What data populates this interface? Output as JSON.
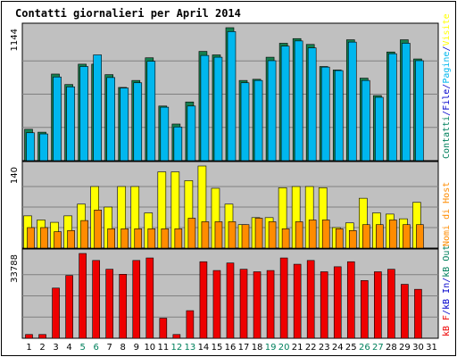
{
  "chart_data": {
    "type": "bar",
    "title": "Contatti giornalieri per April 2014",
    "categories": [
      "1",
      "2",
      "3",
      "4",
      "5",
      "6",
      "7",
      "8",
      "9",
      "10",
      "11",
      "12",
      "13",
      "14",
      "15",
      "16",
      "17",
      "18",
      "19",
      "20",
      "21",
      "22",
      "23",
      "24",
      "25",
      "26",
      "27",
      "28",
      "29",
      "30",
      "31"
    ],
    "weekend_days": [
      "5",
      "6",
      "12",
      "13",
      "19",
      "20",
      "26",
      "27"
    ],
    "colors": {
      "title": "#0000cc",
      "pagine": "#00b7ee",
      "file": "#157e4f",
      "hits": "#ffff00",
      "hosts": "#ff8c00",
      "kb": "#ee0000",
      "plot_bg": "#c0c0c0",
      "weekend_label": "#00805c",
      "legend_contatti": "#00805c",
      "legend_file": "#0000cc",
      "legend_kb": "#0000cc",
      "legend_hosts": "#ff8c00",
      "legend_visite": "#ffff00"
    },
    "panels": [
      {
        "name": "visits",
        "ymax_label": "1144",
        "ylim": [
          0,
          1144
        ],
        "legend": [
          {
            "text": "Contatti",
            "color_key": "legend_contatti"
          },
          {
            "text": "/",
            "color_key": "legend_file"
          },
          {
            "text": "File",
            "color_key": "legend_file"
          },
          {
            "text": "/",
            "color_key": "legend_file"
          },
          {
            "text": "Pagine",
            "color_key": "pagine"
          },
          {
            "text": "/",
            "color_key": "legend_file"
          },
          {
            "text": "Visite",
            "color_key": "legend_visite"
          }
        ],
        "series": [
          {
            "name": "Contatti",
            "values": [
              270,
              245,
              745,
              655,
              830,
              830,
              740,
              630,
              690,
              885,
              470,
              315,
              505,
              940,
              910,
              1144,
              690,
              700,
              890,
              1010,
              1050,
              1000,
              810,
              780,
              1040,
              710,
              560,
              935,
              1040,
              875,
              0
            ]
          },
          {
            "name": "Pagine",
            "values": [
              240,
              230,
              720,
              635,
              810,
              910,
              715,
              625,
              670,
              855,
              460,
              290,
              470,
              905,
              890,
              1110,
              670,
              690,
              860,
              985,
              1030,
              970,
              805,
              775,
              1020,
              690,
              545,
              920,
              1010,
              860,
              0
            ]
          }
        ]
      },
      {
        "name": "hosts",
        "ymax_label": "140",
        "ylim": [
          0,
          140
        ],
        "legend": [
          {
            "text": "Nomi di Host",
            "color_key": "legend_hosts"
          }
        ],
        "series": [
          {
            "name": "Visite",
            "values": [
              55,
              48,
              44,
              55,
              75,
              105,
              70,
              105,
              105,
              60,
              130,
              130,
              115,
              140,
              102,
              75,
              40,
              52,
              52,
              103,
              105,
              105,
              103,
              35,
              43,
              85,
              60,
              58,
              50,
              78,
              0
            ]
          },
          {
            "name": "Nomi di Host",
            "values": [
              35,
              35,
              28,
              30,
              47,
              65,
              33,
              33,
              33,
              33,
              33,
              33,
              51,
              45,
              45,
              45,
              40,
              51,
              45,
              33,
              45,
              48,
              48,
              33,
              30,
              40,
              40,
              48,
              40,
              40,
              0
            ]
          }
        ]
      },
      {
        "name": "kb",
        "ymax_label": "33788",
        "ylim": [
          0,
          33788
        ],
        "legend": [
          {
            "text": "kB F",
            "color_key": "kb"
          },
          {
            "text": "/",
            "color_key": "legend_kb"
          },
          {
            "text": "kB In",
            "color_key": "legend_kb"
          },
          {
            "text": "/",
            "color_key": "legend_kb"
          },
          {
            "text": "kB Out",
            "color_key": "legend_contatti"
          }
        ],
        "series": [
          {
            "name": "kB F",
            "values": [
              1500,
              1500,
              20000,
              25000,
              33788,
              31000,
              27500,
              25500,
              31000,
              32000,
              8000,
              1500,
              11000,
              30500,
              27000,
              30000,
              27500,
              26500,
              27000,
              32000,
              29500,
              31000,
              26500,
              28500,
              30500,
              23000,
              26500,
              27500,
              21500,
              19500,
              0
            ]
          }
        ]
      }
    ]
  }
}
